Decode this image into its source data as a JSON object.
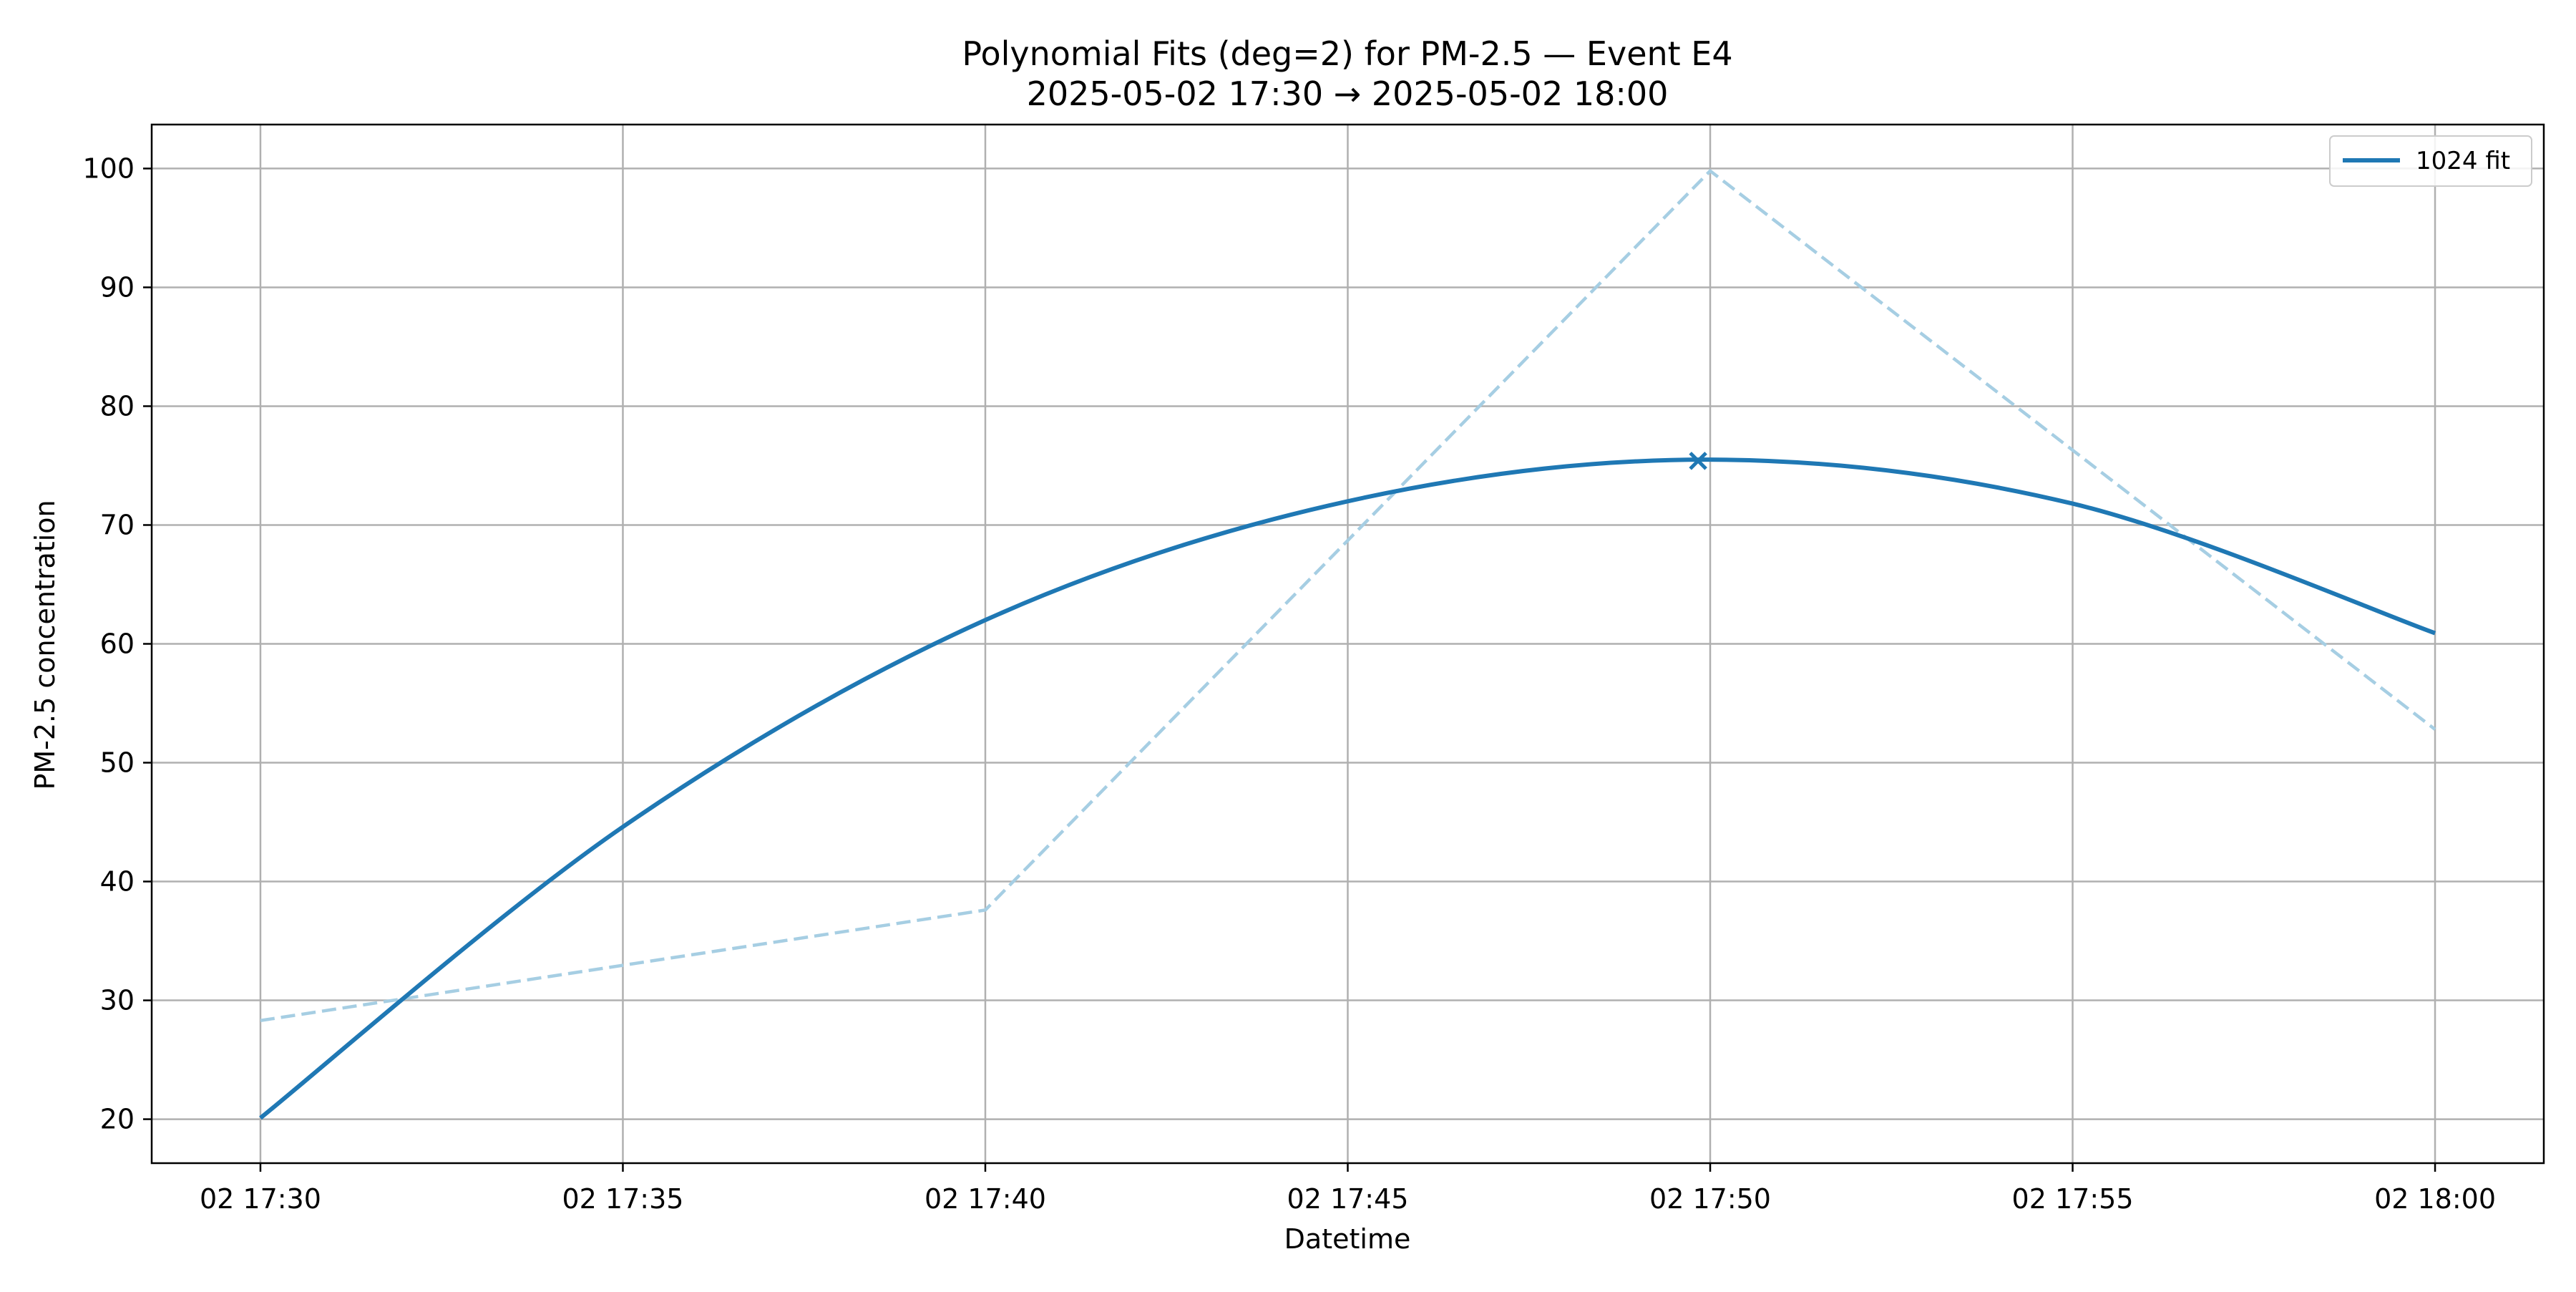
{
  "chart_data": {
    "type": "line",
    "title": "Polynomial Fits (deg=2) for PM-2.5 — Event E4",
    "subtitle": "2025-05-02 17:30 → 2025-05-02 18:00",
    "xlabel": "Datetime",
    "ylabel": "PM-2.5 concentration",
    "xlim": [
      "2025-05-02 17:28:30",
      "2025-05-02 18:01:30"
    ],
    "ylim": [
      16.3,
      103.7
    ],
    "x_ticks": [
      "2025-05-02 17:30",
      "2025-05-02 17:35",
      "2025-05-02 17:40",
      "2025-05-02 17:45",
      "2025-05-02 17:50",
      "2025-05-02 17:55",
      "2025-05-02 18:00"
    ],
    "x_tick_labels": [
      "02 17:30",
      "02 17:35",
      "02 17:40",
      "02 17:45",
      "02 17:50",
      "02 17:55",
      "02 18:00"
    ],
    "y_ticks": [
      20,
      30,
      40,
      50,
      60,
      70,
      80,
      90,
      100
    ],
    "y_tick_labels": [
      "20",
      "30",
      "40",
      "50",
      "60",
      "70",
      "80",
      "90",
      "100"
    ],
    "grid": true,
    "legend_position": "top-right",
    "series": [
      {
        "name": "",
        "style": "dashed",
        "color": "#a6cee3",
        "x": [
          "2025-05-02 17:30",
          "2025-05-02 17:40",
          "2025-05-02 17:50",
          "2025-05-02 18:00"
        ],
        "y": [
          28.3,
          37.6,
          99.8,
          52.8
        ]
      },
      {
        "name": "1024 fit",
        "style": "solid",
        "color": "#1f78b4",
        "x": [
          "2025-05-02 17:30",
          "2025-05-02 17:35",
          "2025-05-02 17:40",
          "2025-05-02 17:45",
          "2025-05-02 17:50",
          "2025-05-02 17:55",
          "2025-05-02 18:00"
        ],
        "y": [
          20.1,
          44.6,
          62.0,
          72.0,
          75.5,
          71.8,
          60.9
        ]
      }
    ],
    "markers": [
      {
        "symbol": "x",
        "color": "#1f78b4",
        "x": "2025-05-02 17:49:50",
        "y": 75.4
      }
    ]
  }
}
